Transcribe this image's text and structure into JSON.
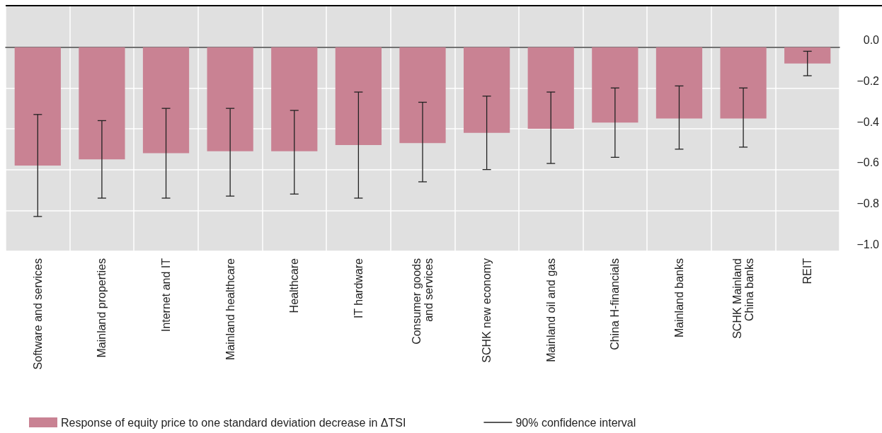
{
  "chart_data": {
    "type": "bar",
    "categories": [
      "Software and services",
      "Mainland properties",
      "Internet and IT",
      "Mainland healthcare",
      "Healthcare",
      "IT hardware",
      "Consumer goods\nand services",
      "SCHK new economy",
      "Mainland oil and gas",
      "China H-financials",
      "Mainland banks",
      "SCHK Mainland\nChina banks",
      "REIT"
    ],
    "series": [
      {
        "name": "Response of equity price to one standard deviation decrease in ΔTSI",
        "color": "#c98293",
        "values": [
          -0.58,
          -0.55,
          -0.52,
          -0.51,
          -0.51,
          -0.48,
          -0.47,
          -0.42,
          -0.4,
          -0.37,
          -0.35,
          -0.35,
          -0.08
        ],
        "errors": [
          [
            -0.83,
            -0.33
          ],
          [
            -0.74,
            -0.36
          ],
          [
            -0.74,
            -0.3
          ],
          [
            -0.73,
            -0.3
          ],
          [
            -0.72,
            -0.31
          ],
          [
            -0.74,
            -0.22
          ],
          [
            -0.66,
            -0.27
          ],
          [
            -0.6,
            -0.24
          ],
          [
            -0.57,
            -0.22
          ],
          [
            -0.54,
            -0.2
          ],
          [
            -0.5,
            -0.19
          ],
          [
            -0.49,
            -0.2
          ],
          [
            -0.14,
            -0.02
          ]
        ]
      }
    ],
    "annotations": [
      "90% confidence interval"
    ],
    "ylim": [
      -1.0,
      0.2
    ],
    "yticks": [
      {
        "value": 0,
        "label": "0.0"
      },
      {
        "value": -0.2,
        "label": "−0.2"
      },
      {
        "value": -0.4,
        "label": "−0.4"
      },
      {
        "value": -0.6,
        "label": "−0.6"
      },
      {
        "value": -0.8,
        "label": "−0.8"
      },
      {
        "value": -1.0,
        "label": "−1.0"
      }
    ],
    "grid": true,
    "legend": "bottom"
  }
}
